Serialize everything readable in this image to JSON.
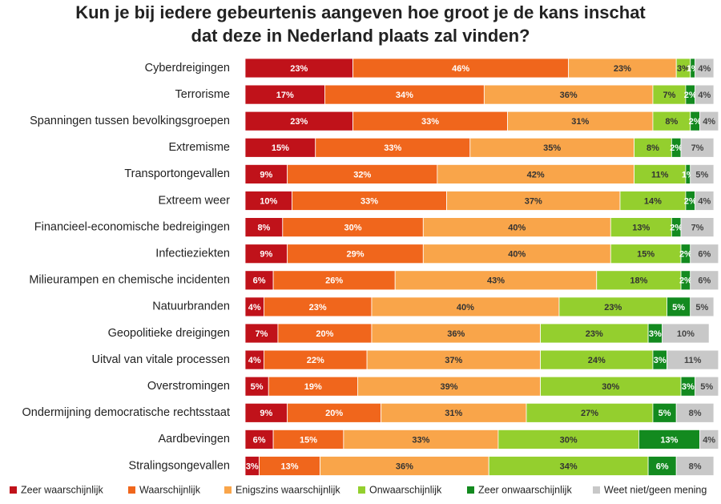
{
  "chart_data": {
    "type": "stacked-bar-horizontal",
    "title": [
      "Kun je bij iedere gebeurtenis aangeven hoe groot je de kans inschat",
      "dat deze in Nederland plaats zal vinden?"
    ],
    "categories": [
      "Cyberdreigingen",
      "Terrorisme",
      "Spanningen tussen bevolkingsgroepen",
      "Extremisme",
      "Transportongevallen",
      "Extreem weer",
      "Financieel-economische bedreigingen",
      "Infectieziekten",
      "Milieurampen en chemische incidenten",
      "Natuurbranden",
      "Geopolitieke dreigingen",
      "Uitval van vitale processen",
      "Overstromingen",
      "Ondermijning democratische rechtsstaat",
      "Aardbevingen",
      "Stralingsongevallen"
    ],
    "series": [
      {
        "name": "Zeer waarschijnlijk",
        "color": "#c0121a",
        "values": [
          23,
          17,
          23,
          15,
          9,
          10,
          8,
          9,
          6,
          4,
          7,
          4,
          5,
          9,
          6,
          3
        ],
        "value_labels": [
          "23%",
          "17%",
          "23%",
          "15%",
          "9%",
          "10%",
          "8%",
          "9%",
          "6%",
          "4%",
          "7%",
          "4%",
          "5%",
          "9%",
          "6%",
          "3%"
        ]
      },
      {
        "name": "Waarschijnlijk",
        "color": "#f0661c",
        "values": [
          46,
          34,
          33,
          33,
          32,
          33,
          30,
          29,
          26,
          23,
          20,
          22,
          19,
          20,
          15,
          13
        ],
        "value_labels": [
          "46%",
          "34%",
          "33%",
          "33%",
          "32%",
          "33%",
          "30%",
          "29%",
          "26%",
          "23%",
          "20%",
          "22%",
          "19%",
          "20%",
          "15%",
          "13%"
        ]
      },
      {
        "name": "Enigszins waarschijnlijk",
        "color": "#f9a54a",
        "values": [
          23,
          36,
          31,
          35,
          42,
          37,
          40,
          40,
          43,
          40,
          36,
          37,
          39,
          31,
          33,
          36
        ],
        "value_labels": [
          "23%",
          "36%",
          "31%",
          "35%",
          "42%",
          "37%",
          "40%",
          "40%",
          "43%",
          "40%",
          "36%",
          "37%",
          "39%",
          "31%",
          "33%",
          "36%"
        ]
      },
      {
        "name": "Onwaarschijnlijk",
        "color": "#94cf2e",
        "values": [
          3,
          7,
          8,
          8,
          11,
          14,
          13,
          15,
          18,
          23,
          23,
          24,
          30,
          27,
          30,
          34
        ],
        "value_labels": [
          "3%",
          "7%",
          "8%",
          "8%",
          "11%",
          "14%",
          "13%",
          "15%",
          "18%",
          "23%",
          "23%",
          "24%",
          "30%",
          "27%",
          "30%",
          "34%"
        ]
      },
      {
        "name": "Zeer onwaarschijnlijk",
        "color": "#138a1f",
        "values": [
          1,
          2,
          2,
          2,
          1,
          2,
          2,
          2,
          2,
          5,
          3,
          3,
          3,
          5,
          13,
          6
        ],
        "value_labels": [
          "1%",
          "2%",
          "2%",
          "2%",
          "1%",
          "2%",
          "2%",
          "2%",
          "2%",
          "5%",
          "3%",
          "3%",
          "3%",
          "5%",
          "13%",
          "6%"
        ]
      },
      {
        "name": "Weet niet/geen mening",
        "color": "#c8c8c8",
        "values": [
          4,
          4,
          4,
          7,
          5,
          4,
          7,
          6,
          6,
          5,
          10,
          11,
          5,
          8,
          4,
          8
        ],
        "value_labels": [
          "4%",
          "4%",
          "4%",
          "7%",
          "5%",
          "4%",
          "7%",
          "6%",
          "6%",
          "5%",
          "10%",
          "11%",
          "5%",
          "8%",
          "4%",
          "8%"
        ]
      }
    ]
  }
}
